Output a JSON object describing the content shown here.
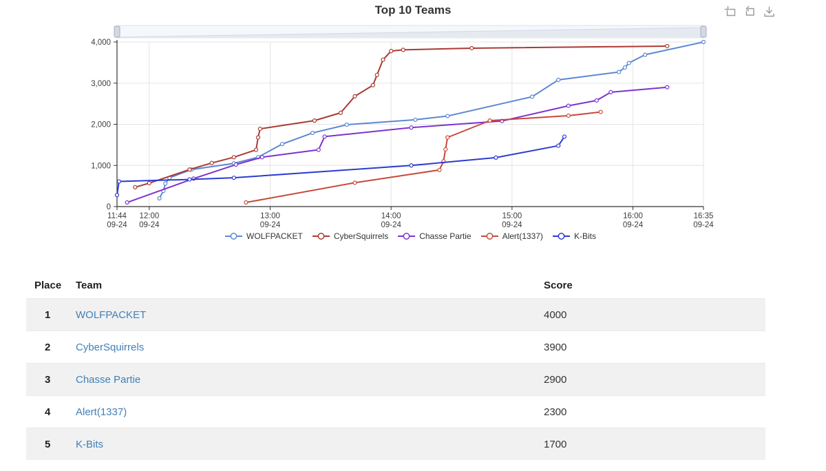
{
  "chart": {
    "title": "Top 10 Teams"
  },
  "toolbox": {
    "icons": [
      {
        "name": "data-zoom-icon"
      },
      {
        "name": "restore-icon"
      },
      {
        "name": "save-as-image-icon"
      }
    ]
  },
  "chart_data": {
    "type": "line",
    "title": "Top 10 Teams",
    "x_axis": {
      "type": "time",
      "ticks": [
        {
          "time": "11:44",
          "date": "09-24"
        },
        {
          "time": "12:00",
          "date": "09-24"
        },
        {
          "time": "13:00",
          "date": "09-24"
        },
        {
          "time": "14:00",
          "date": "09-24"
        },
        {
          "time": "15:00",
          "date": "09-24"
        },
        {
          "time": "16:00",
          "date": "09-24"
        },
        {
          "time": "16:35",
          "date": "09-24"
        }
      ]
    },
    "y_axis": {
      "min": 0,
      "max": 4000,
      "ticks": [
        "0",
        "1,000",
        "2,000",
        "3,000",
        "4,000"
      ]
    },
    "grid": true,
    "legend_position": "bottom",
    "has_datazoom_slider": true,
    "series": [
      {
        "name": "WOLFPACKET",
        "color": "#5b87d2",
        "points": [
          [
            "12:05",
            200
          ],
          [
            "12:07",
            380
          ],
          [
            "12:08",
            560
          ],
          [
            "12:10",
            700
          ],
          [
            "12:21",
            900
          ],
          [
            "12:42",
            1050
          ],
          [
            "12:54",
            1200
          ],
          [
            "13:06",
            1520
          ],
          [
            "13:21",
            1790
          ],
          [
            "13:38",
            1990
          ],
          [
            "14:12",
            2110
          ],
          [
            "14:28",
            2200
          ],
          [
            "15:10",
            2670
          ],
          [
            "15:23",
            3080
          ],
          [
            "15:53",
            3270
          ],
          [
            "15:56",
            3380
          ],
          [
            "15:58",
            3490
          ],
          [
            "16:06",
            3690
          ],
          [
            "16:35",
            4000
          ]
        ]
      },
      {
        "name": "CyberSquirrels",
        "color": "#a83a32",
        "points": [
          [
            "11:53",
            470
          ],
          [
            "12:00",
            570
          ],
          [
            "12:20",
            900
          ],
          [
            "12:31",
            1060
          ],
          [
            "12:42",
            1200
          ],
          [
            "12:53",
            1380
          ],
          [
            "12:54",
            1680
          ],
          [
            "12:55",
            1890
          ],
          [
            "13:22",
            2090
          ],
          [
            "13:35",
            2280
          ],
          [
            "13:42",
            2680
          ],
          [
            "13:51",
            2950
          ],
          [
            "13:53",
            3200
          ],
          [
            "13:56",
            3570
          ],
          [
            "14:00",
            3780
          ],
          [
            "14:06",
            3810
          ],
          [
            "14:40",
            3850
          ],
          [
            "16:17",
            3900
          ]
        ]
      },
      {
        "name": "Chasse Partie",
        "color": "#7c33cf",
        "points": [
          [
            "11:49",
            100
          ],
          [
            "12:22",
            680
          ],
          [
            "12:43",
            1020
          ],
          [
            "12:56",
            1200
          ],
          [
            "13:24",
            1380
          ],
          [
            "13:27",
            1700
          ],
          [
            "14:10",
            1920
          ],
          [
            "14:55",
            2080
          ],
          [
            "15:28",
            2450
          ],
          [
            "15:42",
            2580
          ],
          [
            "15:49",
            2780
          ],
          [
            "16:17",
            2900
          ]
        ]
      },
      {
        "name": "Alert(1337)",
        "color": "#c8483a",
        "points": [
          [
            "12:48",
            100
          ],
          [
            "13:42",
            580
          ],
          [
            "14:24",
            890
          ],
          [
            "14:26",
            1100
          ],
          [
            "14:27",
            1390
          ],
          [
            "14:28",
            1680
          ],
          [
            "14:49",
            2090
          ],
          [
            "15:28",
            2210
          ],
          [
            "15:44",
            2300
          ]
        ]
      },
      {
        "name": "K-Bits",
        "color": "#2a3bd0",
        "points": [
          [
            "11:44",
            280
          ],
          [
            "11:45",
            610
          ],
          [
            "12:20",
            660
          ],
          [
            "12:42",
            700
          ],
          [
            "14:10",
            1000
          ],
          [
            "14:52",
            1190
          ],
          [
            "15:23",
            1480
          ],
          [
            "15:26",
            1700
          ]
        ]
      }
    ]
  },
  "table": {
    "columns": [
      "Place",
      "Team",
      "Score"
    ],
    "rows": [
      {
        "place": "1",
        "team": "WOLFPACKET",
        "score": "4000"
      },
      {
        "place": "2",
        "team": "CyberSquirrels",
        "score": "3900"
      },
      {
        "place": "3",
        "team": "Chasse Partie",
        "score": "2900"
      },
      {
        "place": "4",
        "team": "Alert(1337)",
        "score": "2300"
      },
      {
        "place": "5",
        "team": "K-Bits",
        "score": "1700"
      }
    ]
  }
}
